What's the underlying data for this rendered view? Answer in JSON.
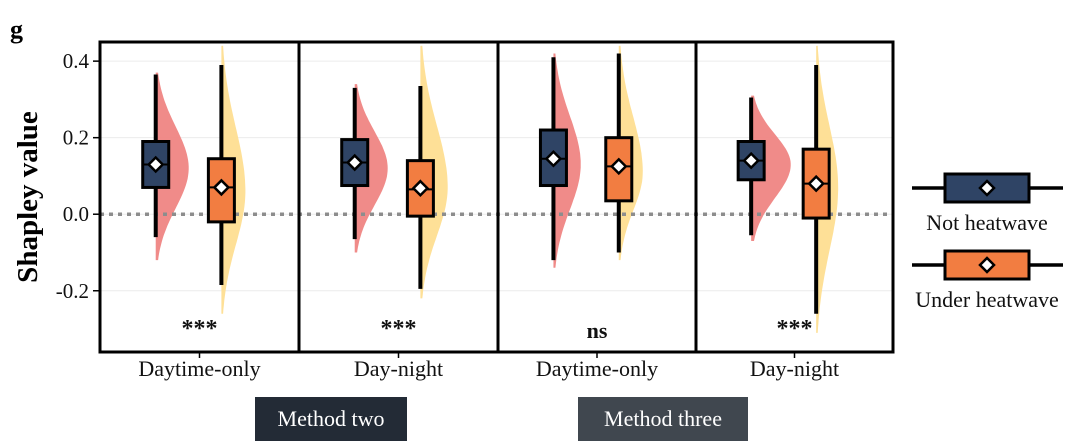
{
  "panel_letter": "g",
  "chart_data": {
    "type": "raincloud-boxplot",
    "ylabel": "Shapley value",
    "ylim": [
      -0.36,
      0.45
    ],
    "yticks": [
      -0.2,
      0.0,
      0.2,
      0.4
    ],
    "ytick_labels": [
      "-0.2",
      "0.0",
      "0.2",
      "0.4"
    ],
    "reference_line": 0.0,
    "panels": [
      {
        "label": "Daytime-only",
        "significance": "***",
        "groups": [
          {
            "series": "Not heatwave",
            "whisker_low": -0.06,
            "q1": 0.07,
            "median": 0.13,
            "q3": 0.19,
            "whisker_high": 0.365,
            "mean": 0.13,
            "density_min": -0.12,
            "density_max": 0.37,
            "density_peak": 0.12
          },
          {
            "series": "Under heatwave",
            "whisker_low": -0.185,
            "q1": -0.02,
            "median": 0.07,
            "q3": 0.145,
            "whisker_high": 0.39,
            "mean": 0.07,
            "density_min": -0.26,
            "density_max": 0.44,
            "density_peak": 0.06
          }
        ]
      },
      {
        "label": "Day-night",
        "significance": "***",
        "groups": [
          {
            "series": "Not heatwave",
            "whisker_low": -0.065,
            "q1": 0.075,
            "median": 0.135,
            "q3": 0.195,
            "whisker_high": 0.33,
            "mean": 0.135,
            "density_min": -0.1,
            "density_max": 0.34,
            "density_peak": 0.12
          },
          {
            "series": "Under heatwave",
            "whisker_low": -0.195,
            "q1": -0.005,
            "median": 0.065,
            "q3": 0.14,
            "whisker_high": 0.335,
            "mean": 0.068,
            "density_min": -0.22,
            "density_max": 0.44,
            "density_peak": 0.07
          }
        ]
      },
      {
        "label": "Daytime-only",
        "significance": "ns",
        "groups": [
          {
            "series": "Not heatwave",
            "whisker_low": -0.12,
            "q1": 0.075,
            "median": 0.145,
            "q3": 0.22,
            "whisker_high": 0.41,
            "mean": 0.145,
            "density_min": -0.14,
            "density_max": 0.42,
            "density_peak": 0.13
          },
          {
            "series": "Under heatwave",
            "whisker_low": -0.1,
            "q1": 0.035,
            "median": 0.125,
            "q3": 0.2,
            "whisker_high": 0.42,
            "mean": 0.125,
            "density_min": -0.12,
            "density_max": 0.44,
            "density_peak": 0.11
          }
        ]
      },
      {
        "label": "Day-night",
        "significance": "***",
        "groups": [
          {
            "series": "Not heatwave",
            "whisker_low": -0.055,
            "q1": 0.09,
            "median": 0.14,
            "q3": 0.19,
            "whisker_high": 0.305,
            "mean": 0.14,
            "density_min": -0.07,
            "density_max": 0.31,
            "density_peak": 0.13
          },
          {
            "series": "Under heatwave",
            "whisker_low": -0.26,
            "q1": -0.01,
            "median": 0.08,
            "q3": 0.17,
            "whisker_high": 0.39,
            "mean": 0.08,
            "density_min": -0.31,
            "density_max": 0.44,
            "density_peak": 0.07
          }
        ]
      }
    ],
    "methods": [
      {
        "label": "Method two",
        "color": "#232b36"
      },
      {
        "label": "Method three",
        "color": "#40474f"
      }
    ],
    "legend": [
      {
        "label": "Not heatwave",
        "box_color": "#2f4465",
        "cloud_color": "#ef8583"
      },
      {
        "label": "Under heatwave",
        "box_color": "#f27d41",
        "cloud_color": "#fede91"
      }
    ]
  }
}
